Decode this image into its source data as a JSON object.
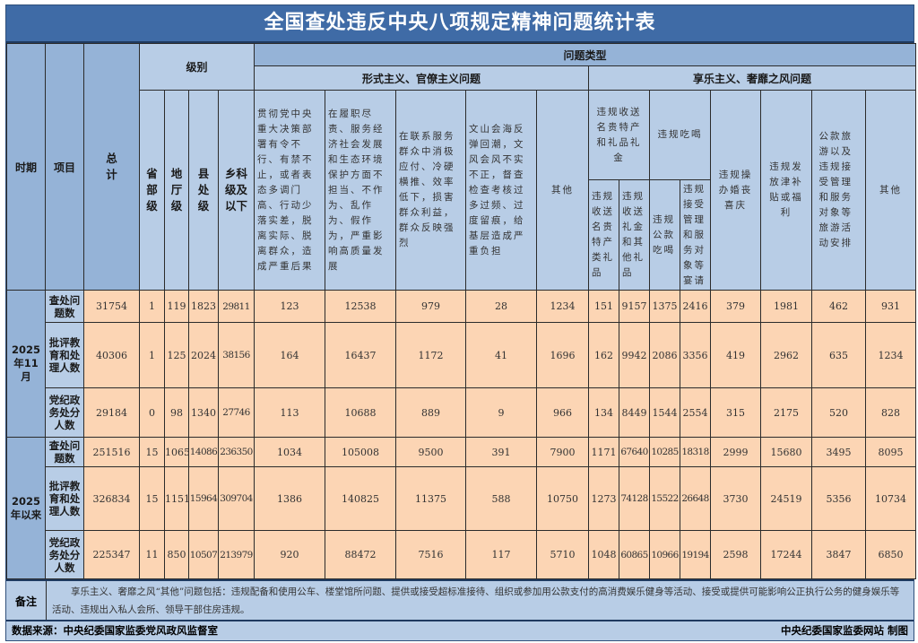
{
  "title": "全国查处违反中央八项规定精神问题统计表",
  "header": {
    "period": "时期",
    "item": "项目",
    "total": "总计",
    "level": "级别",
    "levels": [
      "省部级",
      "地厅级",
      "县处级",
      "乡科级及以下"
    ],
    "problem_type": "问题类型",
    "formalism": "形式主义、官僚主义问题",
    "formalism_cols": [
      "贯彻党中央重大决策部署有令不行、有禁不止，或者表态多调门高、行动少落实差，脱离实际、脱离群众，造成严重后果",
      "在履职尽责、服务经济社会发展和生态环境保护方面不担当、不作为、乱作为、假作为，严重影响高质量发展",
      "在联系服务群众中消极应付、冷硬横推、效率低下，损害群众利益，群众反映强烈",
      "文山会海反弹回潮，文风会风不实不正，督查检查考核过多过频、过度留痕，给基层造成严重负担",
      "其他"
    ],
    "hedonism": "享乐主义、奢靡之风问题",
    "gifts": "违规收送名贵特产和礼品礼金",
    "gifts_sub": [
      "违规收送名贵特产类礼品",
      "违规收送礼金和其他礼品"
    ],
    "dining": "违规吃喝",
    "dining_sub": [
      "违规公款吃喝",
      "违规接受管理和服务对象等宴请"
    ],
    "hedonism_cols": [
      "违规操办婚丧喜庆",
      "违规发放津补贴或福利",
      "公款旅游以及违规接受管理和服务对象等旅游活动安排",
      "其他"
    ]
  },
  "periods": [
    {
      "label": "2025年11月",
      "rows": [
        {
          "item": "查处问题数",
          "values": [
            "31754",
            "1",
            "119",
            "1823",
            "29811",
            "123",
            "12538",
            "979",
            "28",
            "1234",
            "151",
            "9157",
            "1375",
            "2416",
            "379",
            "1981",
            "462",
            "931"
          ]
        },
        {
          "item": "批评教育和处理人数",
          "values": [
            "40306",
            "1",
            "125",
            "2024",
            "38156",
            "164",
            "16437",
            "1172",
            "41",
            "1696",
            "162",
            "9942",
            "2086",
            "3356",
            "419",
            "2962",
            "635",
            "1234"
          ]
        },
        {
          "item": "党纪政务处分人数",
          "values": [
            "29184",
            "0",
            "98",
            "1340",
            "27746",
            "113",
            "10688",
            "889",
            "9",
            "966",
            "134",
            "8449",
            "1544",
            "2554",
            "315",
            "2175",
            "520",
            "828"
          ]
        }
      ]
    },
    {
      "label": "2025年以来",
      "rows": [
        {
          "item": "查处问题数",
          "values": [
            "251516",
            "15",
            "1065",
            "14086",
            "236350",
            "1034",
            "105008",
            "9500",
            "391",
            "7900",
            "1171",
            "67640",
            "10285",
            "18318",
            "2999",
            "15680",
            "3495",
            "8095"
          ]
        },
        {
          "item": "批评教育和处理人数",
          "values": [
            "326834",
            "15",
            "1151",
            "15964",
            "309704",
            "1386",
            "140825",
            "11375",
            "588",
            "10750",
            "1273",
            "74128",
            "15522",
            "26648",
            "3730",
            "24519",
            "5356",
            "10734"
          ]
        },
        {
          "item": "党纪政务处分人数",
          "values": [
            "225347",
            "11",
            "850",
            "10507",
            "213979",
            "920",
            "88472",
            "7516",
            "117",
            "5710",
            "1048",
            "60865",
            "10966",
            "19194",
            "2598",
            "17244",
            "3847",
            "6850"
          ]
        }
      ]
    }
  ],
  "note": {
    "label": "备注",
    "text": "享乐主义、奢靡之风“其他”问题包括：违规配备和使用公车、楼堂馆所问题、提供或接受超标准接待、组织或参加用公款支付的高消费娱乐健身等活动、接受或提供可能影响公正执行公务的健身娱乐等活动、违规出入私人会所、领导干部住房违规。"
  },
  "footer": {
    "source": "数据来源：中央纪委国家监委党风政风监督室",
    "credit": "中央纪委国家监委网站 制图"
  },
  "colors": {
    "title_bar": "#3f6ba6",
    "header": "#b8cde6",
    "header_dark": "#95b3d7",
    "data": "#fcd5b4"
  }
}
